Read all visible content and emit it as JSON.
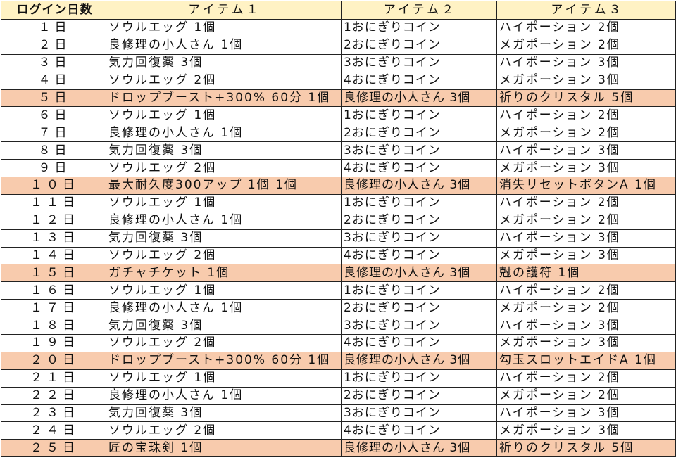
{
  "colors": {
    "header_bg": "#fff2c4",
    "highlight_bg": "#f8cbad"
  },
  "headers": [
    "ログイン日数",
    "アイテム１",
    "アイテム２",
    "アイテム３"
  ],
  "rows": [
    {
      "day": "１日",
      "item1": "ソウルエッグ 1個",
      "item2": "1おにぎりコイン",
      "item3": "ハイポーション 2個",
      "highlight": false
    },
    {
      "day": "２日",
      "item1": "良修理の小人さん 1個",
      "item2": "2おにぎりコイン",
      "item3": "メガポーション 2個",
      "highlight": false
    },
    {
      "day": "３日",
      "item1": "気力回復薬 3個",
      "item2": "3おにぎりコイン",
      "item3": "ハイポーション 3個",
      "highlight": false
    },
    {
      "day": "４日",
      "item1": "ソウルエッグ 2個",
      "item2": "4おにぎりコイン",
      "item3": "メガポーション 3個",
      "highlight": false
    },
    {
      "day": "５日",
      "item1": "ドロップブースト+300% 60分 1個",
      "item2": "良修理の小人さん 3個",
      "item3": "祈りのクリスタル 5個",
      "highlight": true
    },
    {
      "day": "６日",
      "item1": "ソウルエッグ 1個",
      "item2": "1おにぎりコイン",
      "item3": "ハイポーション 2個",
      "highlight": false
    },
    {
      "day": "７日",
      "item1": "良修理の小人さん 1個",
      "item2": "2おにぎりコイン",
      "item3": "メガポーション 2個",
      "highlight": false
    },
    {
      "day": "８日",
      "item1": "気力回復薬 3個",
      "item2": "3おにぎりコイン",
      "item3": "ハイポーション 3個",
      "highlight": false
    },
    {
      "day": "９日",
      "item1": "ソウルエッグ 2個",
      "item2": "4おにぎりコイン",
      "item3": "メガポーション 3個",
      "highlight": false
    },
    {
      "day": "１０日",
      "item1": "最大耐久度300アップ 1個 1個",
      "item2": "良修理の小人さん 3個",
      "item3": "消失リセットボタンA 1個",
      "highlight": true
    },
    {
      "day": "１１日",
      "item1": "ソウルエッグ 1個",
      "item2": "1おにぎりコイン",
      "item3": "ハイポーション 2個",
      "highlight": false
    },
    {
      "day": "１２日",
      "item1": "良修理の小人さん 1個",
      "item2": "2おにぎりコイン",
      "item3": "メガポーション 2個",
      "highlight": false
    },
    {
      "day": "１３日",
      "item1": "気力回復薬 3個",
      "item2": "3おにぎりコイン",
      "item3": "ハイポーション 3個",
      "highlight": false
    },
    {
      "day": "１４日",
      "item1": "ソウルエッグ 2個",
      "item2": "4おにぎりコイン",
      "item3": "メガポーション 3個",
      "highlight": false
    },
    {
      "day": "１５日",
      "item1": "ガチャチケット 1個",
      "item2": "良修理の小人さん 3個",
      "item3": "尅の護符 1個",
      "highlight": true
    },
    {
      "day": "１６日",
      "item1": "ソウルエッグ 1個",
      "item2": "1おにぎりコイン",
      "item3": "ハイポーション 2個",
      "highlight": false
    },
    {
      "day": "１７日",
      "item1": "良修理の小人さん 1個",
      "item2": "2おにぎりコイン",
      "item3": "メガポーション 2個",
      "highlight": false
    },
    {
      "day": "１８日",
      "item1": "気力回復薬 3個",
      "item2": "3おにぎりコイン",
      "item3": "ハイポーション 3個",
      "highlight": false
    },
    {
      "day": "１９日",
      "item1": "ソウルエッグ 2個",
      "item2": "4おにぎりコイン",
      "item3": "メガポーション 3個",
      "highlight": false
    },
    {
      "day": "２０日",
      "item1": "ドロップブースト+300% 60分 1個",
      "item2": "良修理の小人さん 3個",
      "item3": "勾玉スロットエイドA 1個",
      "highlight": true
    },
    {
      "day": "２１日",
      "item1": "ソウルエッグ 1個",
      "item2": "1おにぎりコイン",
      "item3": "ハイポーション 2個",
      "highlight": false
    },
    {
      "day": "２２日",
      "item1": "良修理の小人さん 1個",
      "item2": "2おにぎりコイン",
      "item3": "メガポーション 2個",
      "highlight": false
    },
    {
      "day": "２３日",
      "item1": "気力回復薬 3個",
      "item2": "3おにぎりコイン",
      "item3": "ハイポーション 3個",
      "highlight": false
    },
    {
      "day": "２４日",
      "item1": "ソウルエッグ 2個",
      "item2": "4おにぎりコイン",
      "item3": "メガポーション 3個",
      "highlight": false
    },
    {
      "day": "２５日",
      "item1": "匠の宝珠剣 1個",
      "item2": "良修理の小人さん 3個",
      "item3": "祈りのクリスタル 5個",
      "highlight": true
    }
  ]
}
